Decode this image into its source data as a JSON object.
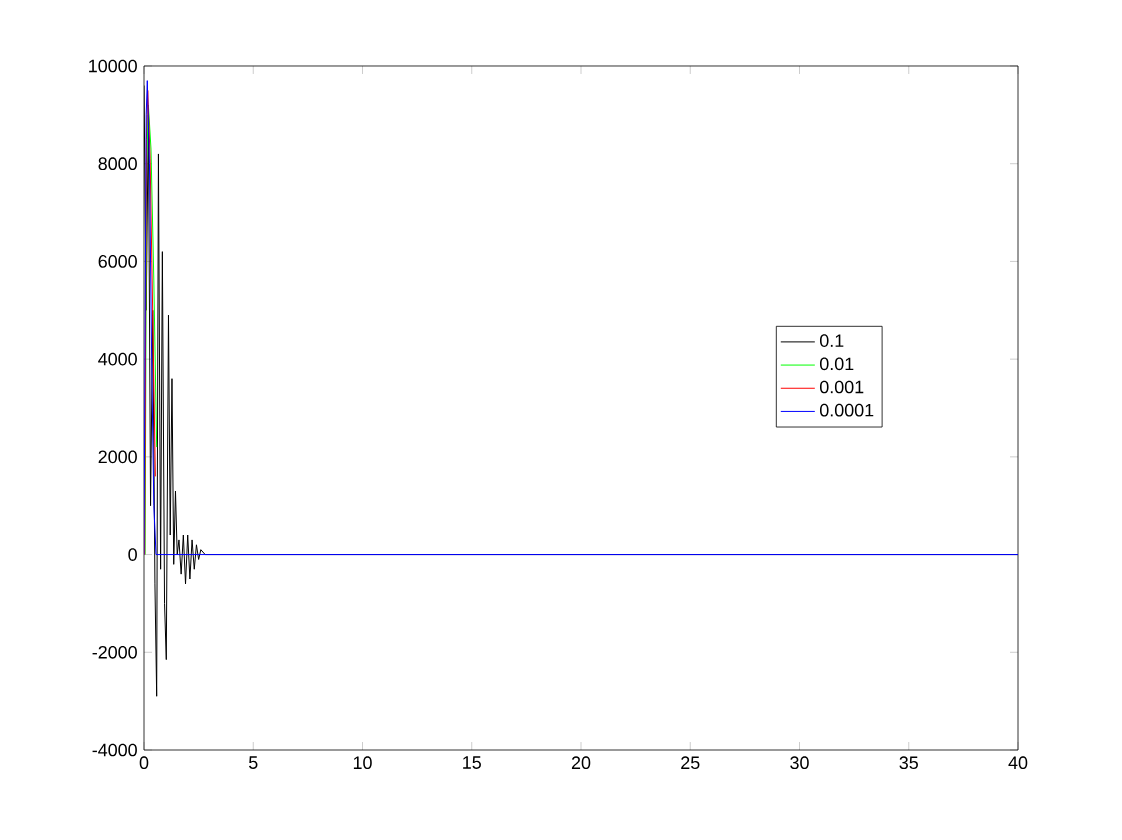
{
  "chart_data": {
    "type": "line",
    "x": [
      0,
      0.1,
      0.2,
      0.3,
      0.4,
      0.5,
      0.58,
      0.66,
      0.76,
      0.84,
      0.94,
      1.02,
      1.12,
      1.2,
      1.28,
      1.36,
      1.44,
      1.52,
      1.6,
      1.7,
      1.8,
      1.9,
      2.0,
      2.1,
      2.2,
      2.3,
      2.4,
      2.5,
      2.6,
      2.8,
      40
    ],
    "series": [
      {
        "name": "0.1",
        "color": "#000000",
        "values": [
          9600,
          5000,
          9000,
          1000,
          5000,
          -600,
          -2900,
          8200,
          -300,
          6200,
          -1000,
          -2150,
          4900,
          400,
          3600,
          -200,
          1300,
          0,
          300,
          -400,
          400,
          -600,
          400,
          -500,
          300,
          -300,
          200,
          -100,
          100,
          0,
          0
        ]
      },
      {
        "name": "0.01",
        "color": "#00ff00",
        "x": [
          0.05,
          0.12,
          0.2,
          0.32,
          0.45,
          0.58
        ],
        "values": [
          0,
          8000,
          9200,
          8300,
          5600,
          2200
        ]
      },
      {
        "name": "0.001",
        "color": "#ff0000",
        "x": [
          0.03,
          0.11,
          0.17,
          0.28,
          0.4,
          0.52
        ],
        "values": [
          0,
          8500,
          9500,
          8100,
          4900,
          1600
        ]
      },
      {
        "name": "0.0001",
        "color": "#0000ff",
        "x": [
          0,
          0.1,
          0.15,
          0.25,
          0.35,
          0.45,
          0.55,
          40
        ],
        "values": [
          0,
          9000,
          9700,
          8000,
          4000,
          1000,
          0,
          0
        ]
      }
    ],
    "xlim": [
      0,
      40
    ],
    "xticks": [
      0,
      5,
      10,
      15,
      20,
      25,
      30,
      35,
      40
    ],
    "ylim": [
      -4000,
      10000
    ],
    "yticks": [
      -4000,
      -2000,
      0,
      2000,
      4000,
      6000,
      8000,
      10000
    ],
    "legend": "right"
  }
}
